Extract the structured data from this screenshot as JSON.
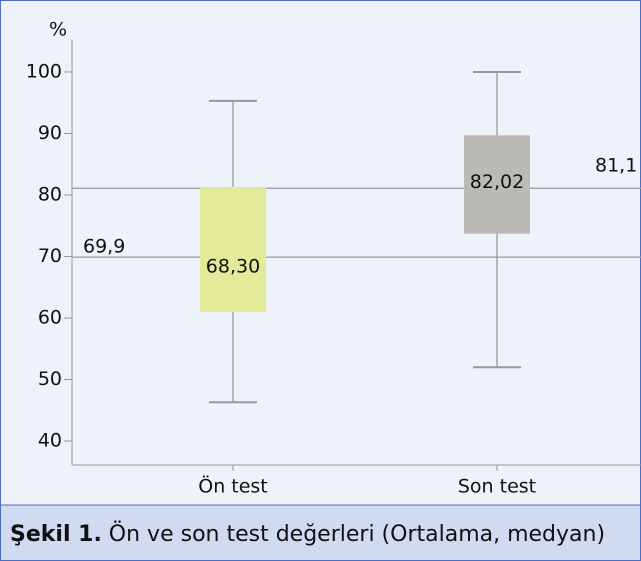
{
  "chart_data": {
    "type": "box",
    "y_label": "%",
    "categories": [
      "Ön test",
      "Son test"
    ],
    "boxes": [
      {
        "whisker_low": 46.3,
        "q1": 61,
        "median": 68.3,
        "q3": 81.3,
        "whisker_high": 95.3,
        "value_label": "68,30",
        "color": "#e3eb9b"
      },
      {
        "whisker_low": 52,
        "q1": 73.7,
        "median": 82.02,
        "q3": 89.7,
        "whisker_high": 100,
        "value_label": "82,02",
        "color": "#bcbab5"
      }
    ],
    "reference_lines": [
      {
        "value": 69.9,
        "label": "69,9"
      },
      {
        "value": 81.1,
        "label": "81,1"
      }
    ],
    "ylim": [
      36.1,
      105.2
    ],
    "yticks": [
      40,
      50,
      60,
      70,
      80,
      90,
      100
    ],
    "caption": {
      "bold": "Şekil 1.",
      "text": " Ön ve son test değerleri (Ortalama, medyan)"
    }
  }
}
